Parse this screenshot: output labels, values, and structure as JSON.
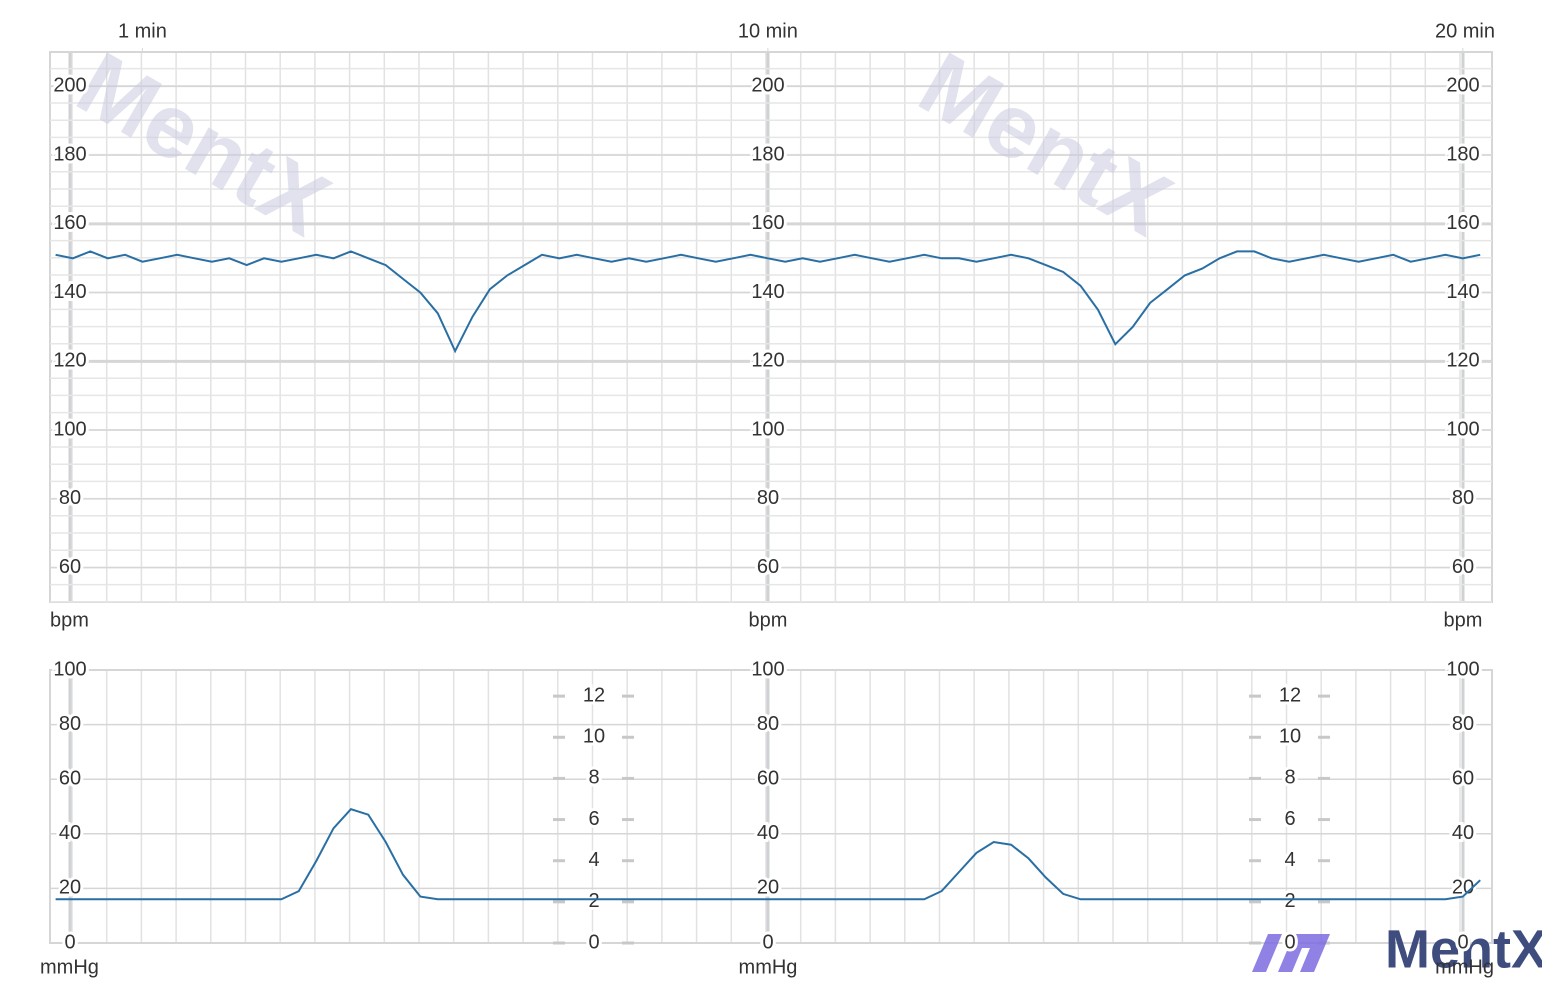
{
  "chart_data": [
    {
      "type": "line",
      "y_unit": "bpm",
      "x": [
        -0.25,
        0,
        0.25,
        0.5,
        0.75,
        1,
        1.25,
        1.5,
        1.75,
        2,
        2.25,
        2.5,
        2.75,
        3,
        3.25,
        3.5,
        3.75,
        4,
        4.25,
        4.5,
        4.75,
        5,
        5.25,
        5.5,
        5.75,
        6,
        6.25,
        6.5,
        6.75,
        7,
        7.25,
        7.5,
        7.75,
        8,
        8.25,
        8.5,
        8.75,
        9,
        9.25,
        9.5,
        9.75,
        10,
        10.25,
        10.5,
        10.75,
        11,
        11.25,
        11.5,
        11.75,
        12,
        12.25,
        12.5,
        12.75,
        13,
        13.25,
        13.5,
        13.75,
        14,
        14.25,
        14.5,
        14.75,
        15,
        15.25,
        15.5,
        15.75,
        16,
        16.25,
        16.5,
        16.75,
        17,
        17.25,
        17.5,
        17.75,
        18,
        18.25,
        18.5,
        18.75,
        19,
        19.25,
        19.5,
        19.75,
        20,
        20.25
      ],
      "values": [
        151,
        150,
        152,
        150,
        151,
        149,
        150,
        151,
        150,
        149,
        150,
        148,
        150,
        149,
        150,
        151,
        150,
        152,
        150,
        148,
        144,
        140,
        134,
        123,
        133,
        141,
        145,
        148,
        151,
        150,
        151,
        150,
        149,
        150,
        149,
        150,
        151,
        150,
        149,
        150,
        151,
        150,
        149,
        150,
        149,
        150,
        151,
        150,
        149,
        150,
        151,
        150,
        150,
        149,
        150,
        151,
        150,
        148,
        146,
        142,
        135,
        125,
        130,
        137,
        141,
        145,
        147,
        150,
        152,
        152,
        150,
        149,
        150,
        151,
        150,
        149,
        150,
        151,
        149,
        150,
        151,
        150,
        151
      ],
      "color": "#2a6fa3",
      "xlim": [
        -0.33,
        20.42
      ],
      "xticks": [
        {
          "value": 1,
          "label": "1 min"
        },
        {
          "value": 10,
          "label": "10 min"
        },
        {
          "value": 20,
          "label": "20 min"
        }
      ],
      "ylim": [
        50,
        210
      ],
      "yticks": [
        60,
        80,
        100,
        120,
        140,
        160,
        180,
        200
      ],
      "grid": true
    },
    {
      "type": "line",
      "y_unit": "mmHg",
      "x": [
        -0.25,
        0,
        0.25,
        0.5,
        0.75,
        1,
        1.25,
        1.5,
        1.75,
        2,
        2.25,
        2.5,
        2.75,
        3,
        3.25,
        3.5,
        3.75,
        4,
        4.25,
        4.5,
        4.75,
        5,
        5.25,
        5.5,
        5.75,
        6,
        6.25,
        6.5,
        6.75,
        7,
        7.25,
        7.5,
        7.75,
        8,
        8.25,
        8.5,
        8.75,
        9,
        9.25,
        9.5,
        9.75,
        10,
        10.25,
        10.5,
        10.75,
        11,
        11.25,
        11.5,
        11.75,
        12,
        12.25,
        12.5,
        12.75,
        13,
        13.25,
        13.5,
        13.75,
        14,
        14.25,
        14.5,
        14.75,
        15,
        15.25,
        15.5,
        15.75,
        16,
        16.25,
        16.5,
        16.75,
        17,
        17.25,
        17.5,
        17.75,
        18,
        18.25,
        18.5,
        18.75,
        19,
        19.25,
        19.5,
        19.75,
        20,
        20.25
      ],
      "values": [
        16,
        16,
        16,
        16,
        16,
        16,
        16,
        16,
        16,
        16,
        16,
        16,
        16,
        16,
        19,
        30,
        42,
        49,
        47,
        37,
        25,
        17,
        16,
        16,
        16,
        16,
        16,
        16,
        16,
        16,
        16,
        16,
        16,
        16,
        16,
        16,
        16,
        16,
        16,
        16,
        16,
        16,
        16,
        16,
        16,
        16,
        16,
        16,
        16,
        16,
        16,
        19,
        26,
        33,
        37,
        36,
        31,
        24,
        18,
        16,
        16,
        16,
        16,
        16,
        16,
        16,
        16,
        16,
        16,
        16,
        16,
        16,
        16,
        16,
        16,
        16,
        16,
        16,
        16,
        16,
        16,
        17,
        23
      ],
      "color": "#2a6fa3",
      "xlim": [
        -0.33,
        20.42
      ],
      "ylim": [
        0,
        100
      ],
      "yticks": [
        0,
        20,
        40,
        60,
        80,
        100
      ],
      "y2lim": [
        0,
        13.27
      ],
      "y2ticks": [
        0,
        2,
        4,
        6,
        8,
        10,
        12
      ],
      "grid": true
    }
  ],
  "logo": "MentX"
}
